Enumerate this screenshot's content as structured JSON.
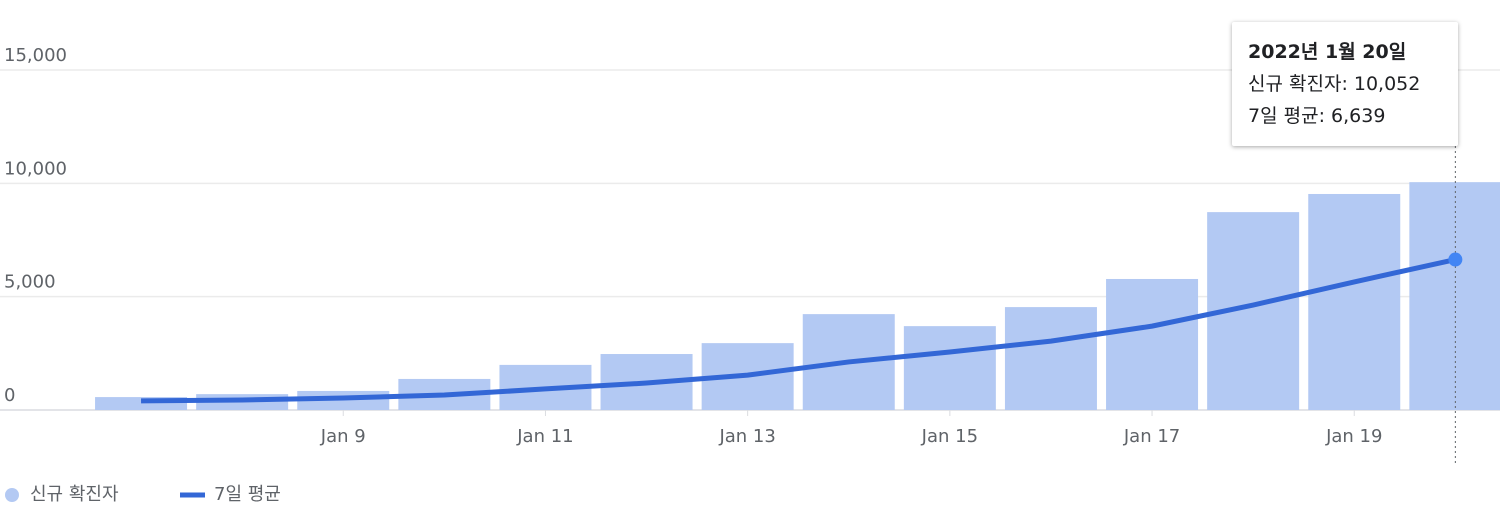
{
  "chart_data": {
    "type": "bar",
    "categories": [
      null,
      null,
      "Jan 9",
      null,
      "Jan 11",
      null,
      "Jan 13",
      null,
      "Jan 15",
      null,
      "Jan 17",
      null,
      "Jan 19",
      null
    ],
    "series": [
      {
        "name": "신규 확진자",
        "type": "bar",
        "color": "#b3c9f3",
        "values": [
          570,
          700,
          840,
          1370,
          1990,
          2470,
          2950,
          4230,
          3700,
          4540,
          5780,
          8730,
          9530,
          10052
        ]
      },
      {
        "name": "7일 평균",
        "type": "line",
        "color": "#3367d6",
        "values": [
          400,
          440,
          530,
          660,
          930,
          1190,
          1540,
          2120,
          2560,
          3040,
          3700,
          4630,
          5650,
          6639
        ]
      }
    ],
    "ylim": [
      0,
      16500
    ],
    "yticks": [
      0,
      {
        "value": 5000,
        "label": "5,000"
      },
      {
        "value": 10000,
        "label": "10,000"
      },
      {
        "value": 15000,
        "label": "15,000"
      }
    ],
    "grid": true,
    "legend": "bottom",
    "tooltip": {
      "title": "2022년 1월 20일",
      "lines": [
        "신규 확진자: 10,052",
        "7일 평균: 6,639"
      ]
    }
  }
}
